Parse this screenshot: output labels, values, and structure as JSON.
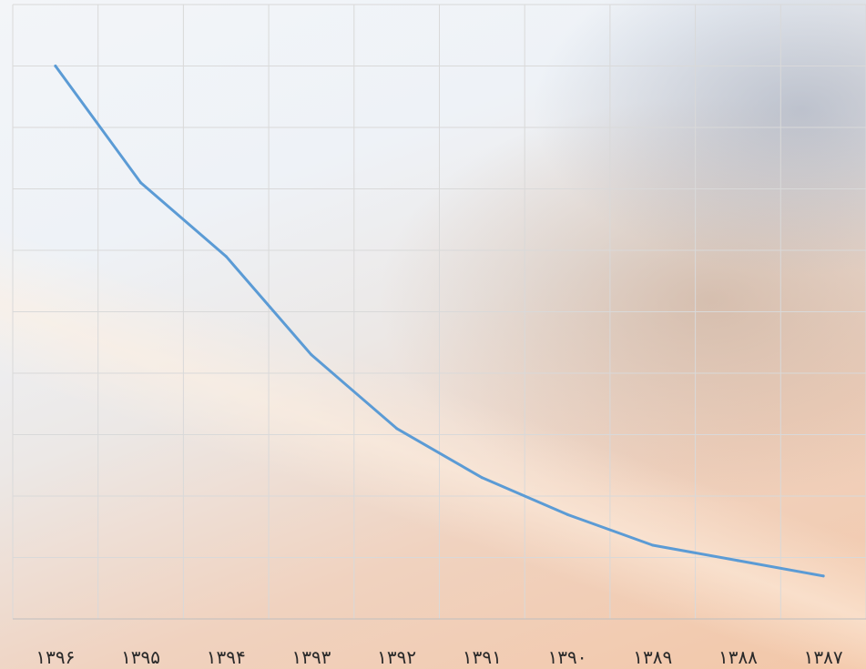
{
  "chart_data": {
    "type": "line",
    "title": "",
    "xlabel": "",
    "ylabel": "",
    "categories": [
      "۱۳۹۶",
      "۱۳۹۵",
      "۱۳۹۴",
      "۱۳۹۳",
      "۱۳۹۲",
      "۱۳۹۱",
      "۱۳۹۰",
      "۱۳۸۹",
      "۱۳۸۸",
      "۱۳۸۷"
    ],
    "series": [
      {
        "values": [
          9.0,
          7.1,
          5.9,
          4.3,
          3.1,
          2.3,
          1.7,
          1.2,
          0.95,
          0.7
        ]
      }
    ],
    "ylim": [
      0,
      10
    ],
    "grid": true,
    "y_tick_labels_shown": false,
    "colors": {
      "line": "#5b9bd5",
      "grid": "#d9d9d9",
      "axis": "#bfbfbf"
    }
  }
}
